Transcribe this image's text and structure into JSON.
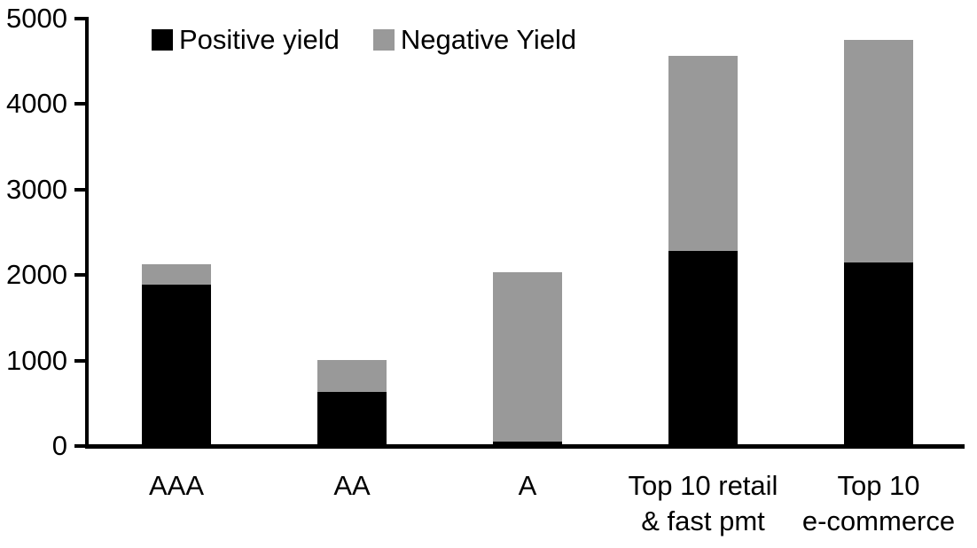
{
  "chart_data": {
    "type": "bar",
    "stacked": true,
    "title": "",
    "xlabel": "",
    "ylabel": "",
    "categories": [
      "AAA",
      "AA",
      "A",
      "Top 10 retail & fast pmt",
      "Top 10 e-commerce"
    ],
    "category_lines": [
      [
        "AAA"
      ],
      [
        "AA"
      ],
      [
        "A"
      ],
      [
        "Top 10 retail",
        "& fast pmt"
      ],
      [
        "Top 10",
        "e-commerce"
      ]
    ],
    "series": [
      {
        "name": "Positive yield",
        "color": "#000000",
        "values": [
          1890,
          630,
          50,
          2280,
          2150
        ]
      },
      {
        "name": "Negative Yield",
        "color": "#999999",
        "values": [
          240,
          370,
          1980,
          2280,
          2600
        ]
      }
    ],
    "stacked_totals": [
      2130,
      1000,
      2030,
      4560,
      4750
    ],
    "ylim": [
      0,
      5000
    ],
    "yticks": [
      0,
      1000,
      2000,
      3000,
      4000,
      5000
    ],
    "grid": false,
    "legend_position": "top-inside",
    "colors": {
      "background": "#ffffff",
      "axis": "#000000",
      "positive_series": "#000000",
      "negative_series": "#999999"
    }
  }
}
